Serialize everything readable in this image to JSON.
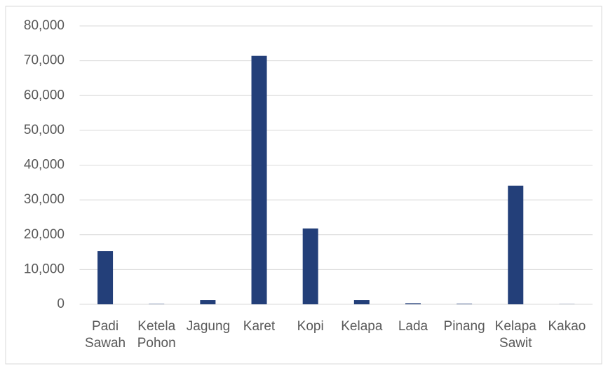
{
  "chart_data": {
    "type": "bar",
    "categories": [
      "Padi Sawah",
      "Ketela Pohon",
      "Jagung",
      "Karet",
      "Kopi",
      "Kelapa",
      "Lada",
      "Pinang",
      "Kelapa Sawit",
      "Kakao"
    ],
    "values": [
      15300,
      100,
      1200,
      71400,
      21800,
      1200,
      300,
      150,
      34100,
      50
    ],
    "color": "#233f79",
    "ylim": [
      0,
      80000
    ],
    "yticks": [
      0,
      {
        "value": 10000,
        "label": "10,000"
      },
      {
        "value": 20000,
        "label": "20,000"
      },
      {
        "value": 30000,
        "label": "30,000"
      },
      {
        "value": 40000,
        "label": "40,000"
      },
      {
        "value": 50000,
        "label": "50,000"
      },
      {
        "value": 60000,
        "label": "60,000"
      },
      {
        "value": 70000,
        "label": "70,000"
      },
      {
        "value": 80000,
        "label": "80,000"
      }
    ],
    "grid": true
  }
}
